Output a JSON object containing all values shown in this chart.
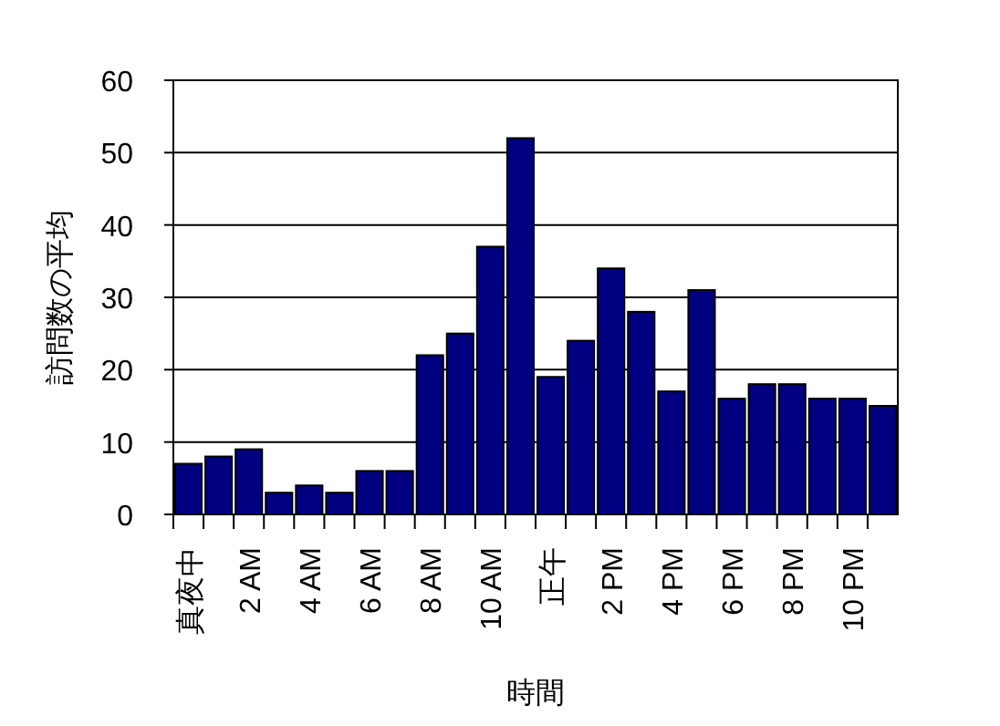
{
  "chart_data": {
    "type": "bar",
    "xlabel": "時間",
    "ylabel": "訪問数の平均",
    "categories": [
      "真夜中",
      null,
      "2 AM",
      null,
      "4 AM",
      null,
      "6 AM",
      null,
      "8 AM",
      null,
      "10 AM",
      null,
      "正午",
      null,
      "2 PM",
      null,
      "4 PM",
      null,
      "6 PM",
      null,
      "8 PM",
      null,
      "10 PM",
      null
    ],
    "values": [
      7,
      8,
      9,
      3,
      4,
      3,
      6,
      6,
      22,
      25,
      37,
      52,
      19,
      24,
      34,
      28,
      17,
      31,
      16,
      18,
      18,
      16,
      16,
      15
    ],
    "color": "#000080",
    "ylim": [
      0,
      60
    ],
    "yticks": [
      0,
      10,
      20,
      30,
      40,
      50,
      60
    ],
    "grid": "y"
  }
}
